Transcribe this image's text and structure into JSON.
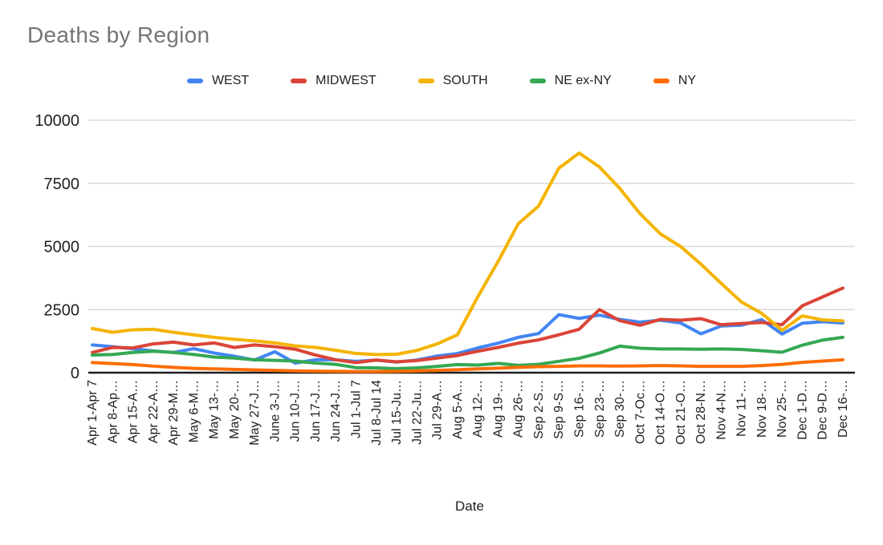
{
  "page": {
    "background": "#ffffff",
    "title_color": "#757575",
    "text_color": "#202124",
    "gridline_color": "#d9d9d9",
    "axis_color": "#1f1f1f"
  },
  "chart_data": {
    "type": "line",
    "title": "Deaths by Region",
    "xlabel": "Date",
    "ylabel": "",
    "ylim": [
      0,
      10000
    ],
    "yticks": [
      0,
      2500,
      5000,
      7500,
      10000
    ],
    "grid": true,
    "legend_position": "top",
    "categories": [
      "Apr 1-Apr 7",
      "Apr 8-Ap…",
      "Apr 15-A…",
      "Apr 22-A…",
      "Apr 29-M…",
      "May 6-M…",
      "May 13-…",
      "May 20-…",
      "May 27-J…",
      "June 3-J…",
      "Jun 10-J…",
      "Jun 17-J…",
      "Jun 24-J…",
      "Jul 1-Jul 7",
      "Jul 8-Jul 14",
      "Jul 15-Ju…",
      "Jul 22-Ju…",
      "Jul 29-A…",
      "Aug 5-A…",
      "Aug 12-…",
      "Aug 19-…",
      "Aug 26-…",
      "Sep 2-S…",
      "Sep 9-S…",
      "Sep 16-…",
      "Sep 23-…",
      "Sep 30-…",
      "Oct 7-Oc…",
      "Oct 14-O…",
      "Oct 21-O…",
      "Oct 28-N…",
      "Nov 4-N…",
      "Nov 11-…",
      "Nov 18-…",
      "Nov 25-…",
      "Dec 1-D…",
      "Dec 9-D…",
      "Dec 16-…"
    ],
    "series": [
      {
        "name": "WEST",
        "color": "#4285F4",
        "values": [
          1100,
          1030,
          950,
          860,
          800,
          950,
          780,
          650,
          500,
          830,
          380,
          510,
          510,
          450,
          500,
          420,
          500,
          660,
          760,
          980,
          1170,
          1400,
          1550,
          2300,
          2150,
          2280,
          2110,
          2000,
          2080,
          1970,
          1540,
          1850,
          1880,
          2100,
          1530,
          1960,
          2020,
          1970
        ]
      },
      {
        "name": "MIDWEST",
        "color": "#DB4437",
        "values": [
          800,
          1000,
          980,
          1140,
          1210,
          1100,
          1180,
          1000,
          1100,
          1030,
          930,
          700,
          510,
          400,
          500,
          430,
          480,
          580,
          680,
          850,
          1000,
          1170,
          1300,
          1500,
          1720,
          2500,
          2060,
          1880,
          2110,
          2080,
          2140,
          1900,
          1950,
          1990,
          1900,
          2650,
          3000,
          3350
        ]
      },
      {
        "name": "SOUTH",
        "color": "#F4B400",
        "values": [
          1750,
          1600,
          1700,
          1720,
          1600,
          1500,
          1400,
          1320,
          1260,
          1180,
          1060,
          1000,
          890,
          760,
          720,
          730,
          880,
          1140,
          1500,
          3000,
          4400,
          5900,
          6600,
          8100,
          8700,
          8150,
          7300,
          6300,
          5500,
          5000,
          4300,
          3540,
          2800,
          2350,
          1680,
          2250,
          2090,
          2050
        ]
      },
      {
        "name": "NE ex-NY",
        "color": "#34A853",
        "values": [
          700,
          720,
          800,
          850,
          800,
          720,
          620,
          580,
          510,
          490,
          460,
          380,
          330,
          200,
          190,
          160,
          190,
          250,
          320,
          300,
          370,
          290,
          330,
          450,
          570,
          780,
          1050,
          970,
          940,
          940,
          930,
          940,
          920,
          870,
          810,
          1090,
          1290,
          1400
        ]
      },
      {
        "name": "NY",
        "color": "#FF6D01",
        "values": [
          400,
          360,
          320,
          260,
          210,
          170,
          150,
          130,
          110,
          90,
          70,
          60,
          50,
          45,
          45,
          50,
          70,
          90,
          120,
          150,
          180,
          210,
          240,
          250,
          270,
          270,
          260,
          270,
          280,
          270,
          250,
          250,
          250,
          280,
          330,
          410,
          460,
          510
        ]
      }
    ]
  }
}
